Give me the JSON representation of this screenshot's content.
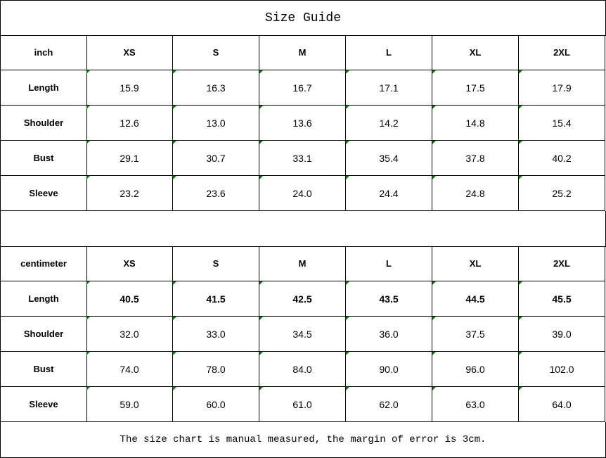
{
  "title": "Size Guide",
  "tables": [
    {
      "unit": "inch",
      "sizes": [
        "XS",
        "S",
        "M",
        "L",
        "XL",
        "2XL"
      ],
      "rows": [
        {
          "label": "Length",
          "values": [
            "15.9",
            "16.3",
            "16.7",
            "17.1",
            "17.5",
            "17.9"
          ],
          "bold": false
        },
        {
          "label": "Shoulder",
          "values": [
            "12.6",
            "13.0",
            "13.6",
            "14.2",
            "14.8",
            "15.4"
          ],
          "bold": false
        },
        {
          "label": "Bust",
          "values": [
            "29.1",
            "30.7",
            "33.1",
            "35.4",
            "37.8",
            "40.2"
          ],
          "bold": false
        },
        {
          "label": "Sleeve",
          "values": [
            "23.2",
            "23.6",
            "24.0",
            "24.4",
            "24.8",
            "25.2"
          ],
          "bold": false
        }
      ]
    },
    {
      "unit": "centimeter",
      "sizes": [
        "XS",
        "S",
        "M",
        "L",
        "XL",
        "2XL"
      ],
      "rows": [
        {
          "label": "Length",
          "values": [
            "40.5",
            "41.5",
            "42.5",
            "43.5",
            "44.5",
            "45.5"
          ],
          "bold": true
        },
        {
          "label": "Shoulder",
          "values": [
            "32.0",
            "33.0",
            "34.5",
            "36.0",
            "37.5",
            "39.0"
          ],
          "bold": false
        },
        {
          "label": "Bust",
          "values": [
            "74.0",
            "78.0",
            "84.0",
            "90.0",
            "96.0",
            "102.0"
          ],
          "bold": false
        },
        {
          "label": "Sleeve",
          "values": [
            "59.0",
            "60.0",
            "61.0",
            "62.0",
            "63.0",
            "64.0"
          ],
          "bold": false
        }
      ]
    }
  ],
  "footer": "The size chart is manual measured, the margin of error is 3cm.",
  "colors": {
    "marker": "#008000",
    "border": "#000000"
  }
}
